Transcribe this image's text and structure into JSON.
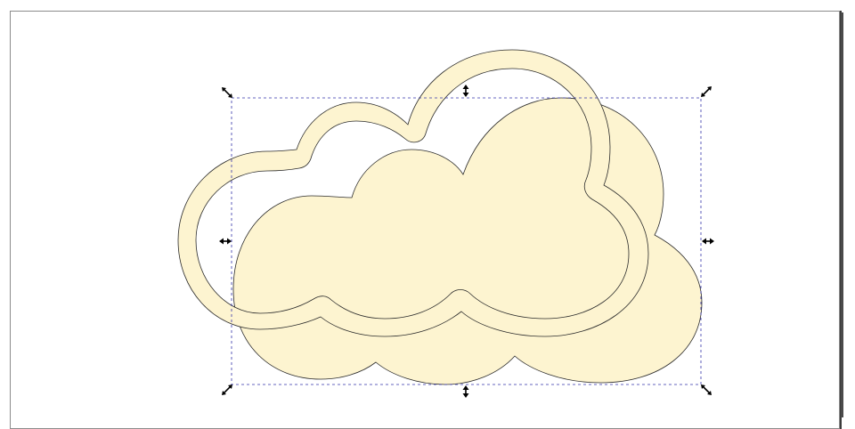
{
  "canvas": {
    "shape_fill": "#fdf4d0",
    "shape_stroke": "#2b2b2b",
    "selection_color": "#3333aa",
    "handle_color": "#000000"
  },
  "objects": [
    {
      "name": "solid-cloud",
      "kind": "path",
      "selected": true
    },
    {
      "name": "outline-cloud",
      "kind": "path",
      "selected": true
    }
  ],
  "selection": {
    "handles": [
      "top-left",
      "top",
      "top-right",
      "left",
      "right",
      "bottom-left",
      "bottom",
      "bottom-right"
    ],
    "mode": "scale"
  }
}
